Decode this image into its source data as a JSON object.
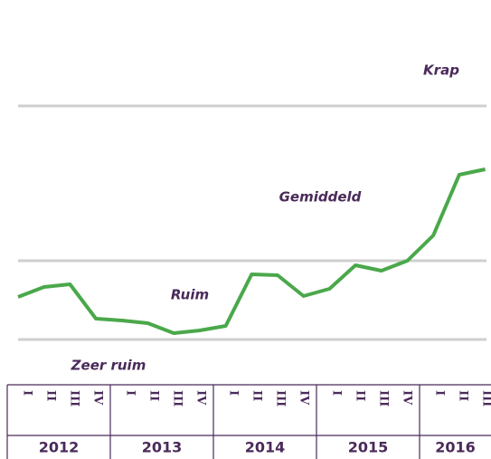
{
  "chart_data": {
    "type": "line",
    "groups": [
      {
        "name": "2012",
        "categories": [
          "I",
          "II",
          "III",
          "IV"
        ]
      },
      {
        "name": "2013",
        "categories": [
          "I",
          "II",
          "III",
          "IV"
        ]
      },
      {
        "name": "2014",
        "categories": [
          "I",
          "II",
          "III",
          "IV"
        ]
      },
      {
        "name": "2015",
        "categories": [
          "I",
          "II",
          "III",
          "IV"
        ]
      },
      {
        "name": "2016",
        "categories": [
          "I",
          "II",
          "III"
        ]
      }
    ],
    "values": [
      25.5,
      28.25,
      29,
      19.5,
      19,
      18.25,
      15.5,
      16.25,
      17.5,
      31.75,
      31.5,
      25.75,
      27.75,
      34.25,
      32.75,
      35.5,
      42.5,
      59.25,
      60.75
    ],
    "color": "#4aa84a",
    "ylim": [
      0,
      100
    ],
    "reference_lines": [
      78.25,
      35.5,
      13.75
    ],
    "annotations": [
      {
        "text": "Krap",
        "value": 88
      },
      {
        "text": "Gemiddeld",
        "value": 53
      },
      {
        "text": "Ruim",
        "value": 26
      },
      {
        "text": "Zeer ruim",
        "value": 6.5
      }
    ]
  }
}
